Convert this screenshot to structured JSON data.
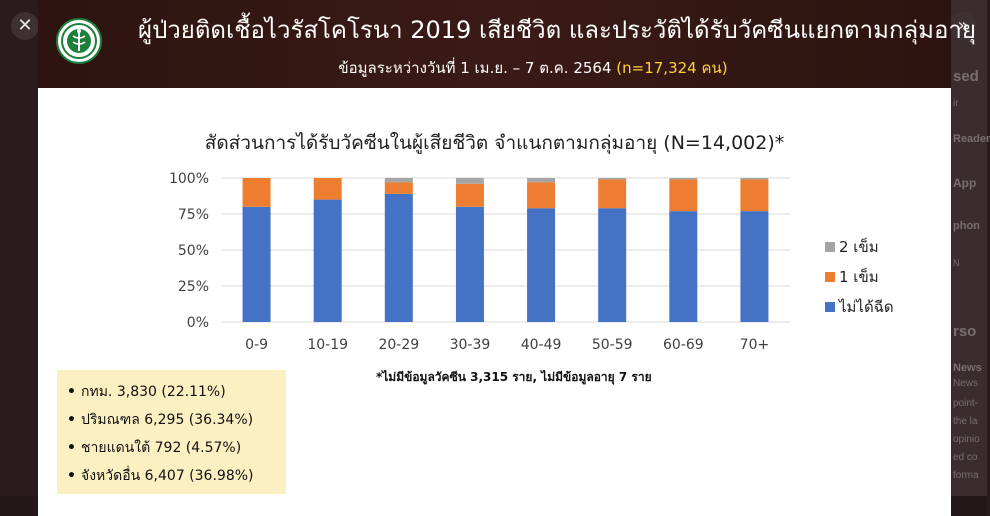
{
  "viewer": {
    "close_icon": "close-icon",
    "next_icon": "chevron-right-icon"
  },
  "background_page": {
    "fragments": [
      "sed",
      "ir",
      "Reader",
      "App",
      "phon",
      "N",
      "rso",
      "News",
      "News",
      "point-",
      "the la",
      "opinio",
      "ed co",
      "forma"
    ]
  },
  "slide": {
    "title": "ผู้ป่วยติดเชื้อไวรัสโคโรนา 2019 เสียชีวิต และประวัติได้รับวัคซีนแยกตามกลุ่มอายุ",
    "subtitle_main": "ข้อมูลระหว่างวันที่ 1 เม.ย. – 7 ต.ค. 2564",
    "subtitle_highlight": "(n=17,324 คน)",
    "chart_title": "สัดส่วนการได้รับวัคซีนในผู้เสียชีวิต จำแนกตามกลุ่มอายุ (N=14,002)*",
    "footnote": "*ไม่มีข้อมูลวัคซีน 3,315 ราย, ไม่มีข้อมูลอายุ 7 ราย",
    "regions": [
      "กทม. 3,830 (22.11%)",
      "ปริมณฑล 6,295 (36.34%)",
      "ชายแดนใต้ 792 (4.57%)",
      "จังหวัดอื่น 6,407 (36.98%)"
    ]
  },
  "colors": {
    "banner": "#3a1a16",
    "highlight": "#ffd23b",
    "unvaccinated": "#4472c4",
    "one_dose": "#ed7d31",
    "two_doses": "#a5a5a5",
    "info_box": "#fcefc2"
  },
  "chart_data": {
    "type": "bar",
    "stacked": true,
    "categories": [
      "0-9",
      "10-19",
      "20-29",
      "30-39",
      "40-49",
      "50-59",
      "60-69",
      "70+"
    ],
    "y_ticks": [
      "0%",
      "25%",
      "50%",
      "75%",
      "100%"
    ],
    "ylim": [
      0,
      100
    ],
    "legend_position": "right",
    "series": [
      {
        "name": "ไม่ได้ฉีด",
        "color": "#4472c4",
        "values": [
          80,
          85,
          89,
          80,
          79,
          79,
          77,
          77
        ]
      },
      {
        "name": "1 เข็ม",
        "color": "#ed7d31",
        "values": [
          20,
          15,
          8,
          16,
          18,
          20,
          22,
          22
        ]
      },
      {
        "name": "2 เข็ม",
        "color": "#a5a5a5",
        "values": [
          0,
          0,
          3,
          4,
          3,
          1,
          1,
          1
        ]
      }
    ]
  }
}
